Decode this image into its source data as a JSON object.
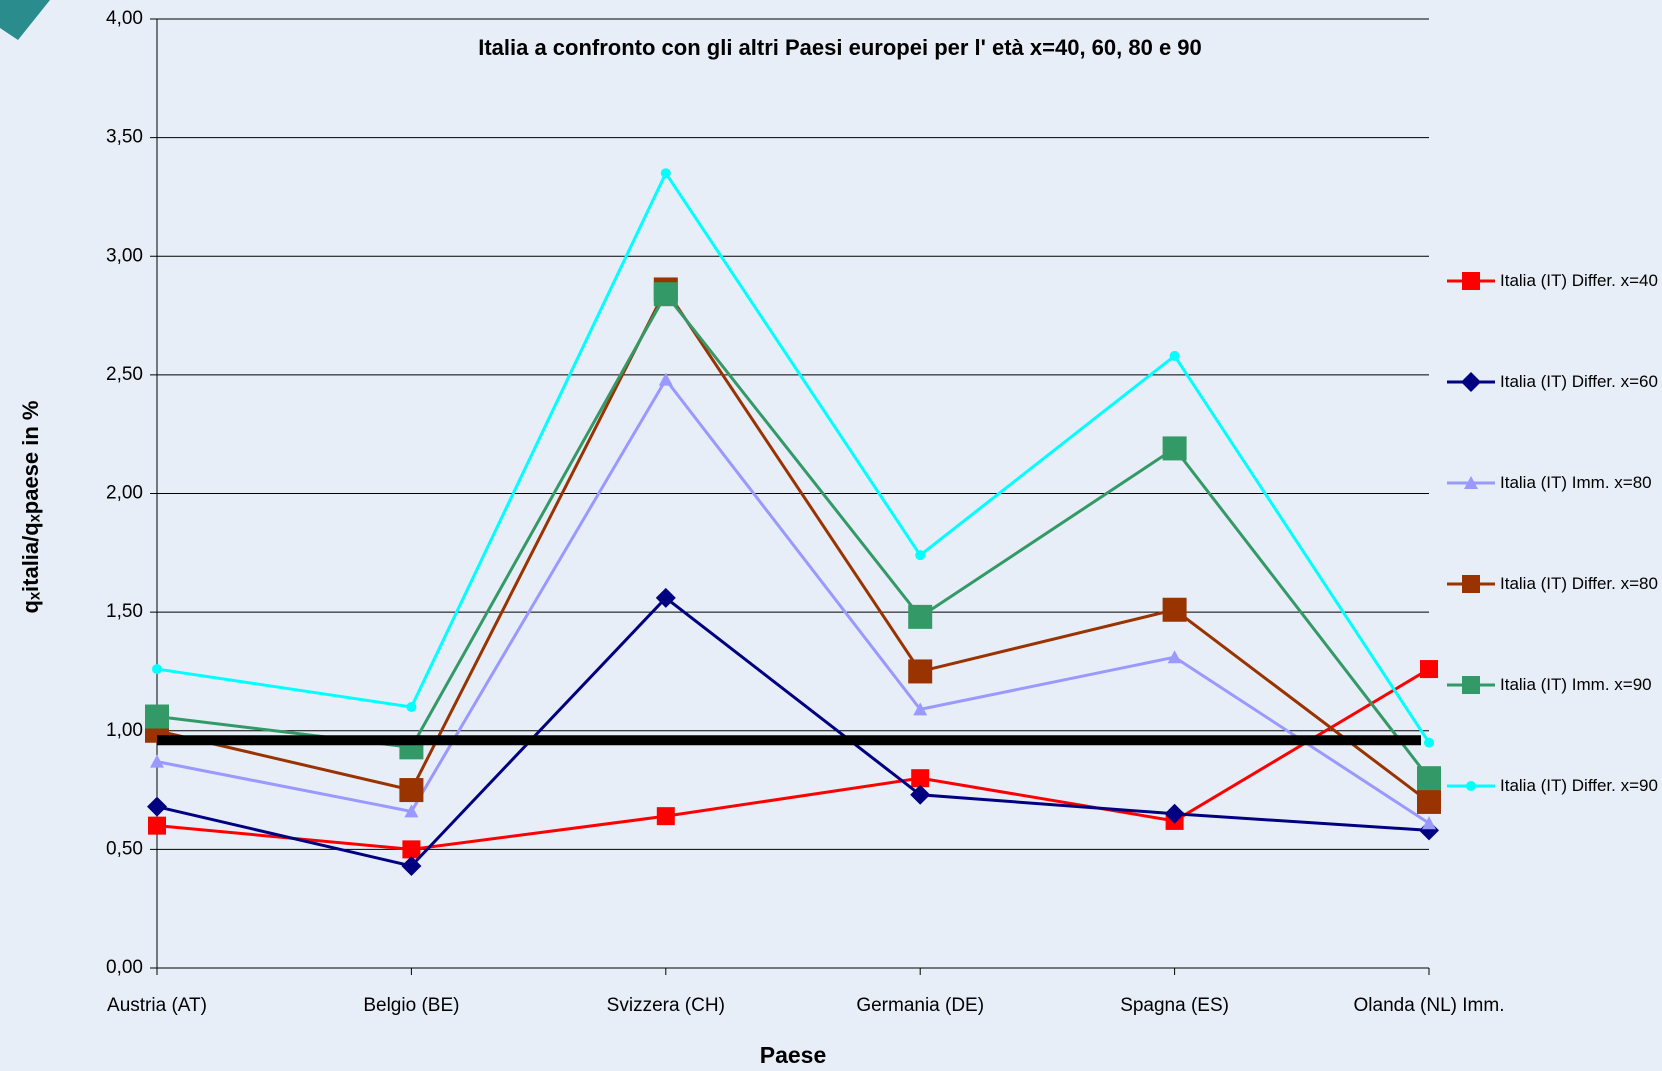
{
  "chart_data": {
    "type": "line",
    "title": "Italia a confronto con gli altri Paesi europei per l' età x=40, 60, 80 e 90",
    "x_label": "Paese",
    "y_label": "qₓitalia/qₓpaese in %",
    "categories": [
      "Austria (AT)",
      "Belgio (BE)",
      "Svizzera (CH)",
      "Germania (DE)",
      "Spagna (ES)",
      "Olanda (NL) Imm."
    ],
    "ylim": [
      0,
      4
    ],
    "yticks": [
      {
        "value": 0,
        "label": "0,00"
      },
      {
        "value": 0.5,
        "label": "0,50"
      },
      {
        "value": 1,
        "label": "1,00"
      },
      {
        "value": 1.5,
        "label": "1,50"
      },
      {
        "value": 2,
        "label": "2,00"
      },
      {
        "value": 2.5,
        "label": "2,50"
      },
      {
        "value": 3,
        "label": "3,00"
      },
      {
        "value": 3.5,
        "label": "3,50"
      },
      {
        "value": 4,
        "label": "4,00"
      }
    ],
    "grid": true,
    "legend": "right",
    "series": [
      {
        "name": "Italia (IT) Differ. x=40",
        "color": "#ff0000",
        "marker": "square",
        "values": [
          0.6,
          0.5,
          0.64,
          0.8,
          0.62,
          1.26
        ]
      },
      {
        "name": "Italia (IT) Differ. x=60",
        "color": "#000080",
        "marker": "diamond",
        "values": [
          0.68,
          0.43,
          1.56,
          0.73,
          0.65,
          0.58
        ]
      },
      {
        "name": "Italia (IT) Imm. x=80",
        "color": "#9999ff",
        "marker": "triangle",
        "values": [
          0.87,
          0.66,
          2.48,
          1.09,
          1.31,
          0.61
        ]
      },
      {
        "name": "Italia (IT) Differ. x=80",
        "color": "#993300",
        "marker": "square",
        "values": [
          1.0,
          0.75,
          2.86,
          1.25,
          1.51,
          0.7
        ]
      },
      {
        "name": "Italia (IT) Imm. x=90",
        "color": "#339966",
        "marker": "square",
        "values": [
          1.06,
          0.93,
          2.84,
          1.48,
          2.19,
          0.8
        ]
      },
      {
        "name": "Italia (IT) Differ. x=90",
        "color": "#00ffff",
        "marker": "circle",
        "values": [
          1.26,
          1.1,
          3.35,
          1.74,
          2.58,
          0.95
        ]
      }
    ],
    "reference_line": {
      "value": 0.96,
      "color": "#000000"
    }
  }
}
